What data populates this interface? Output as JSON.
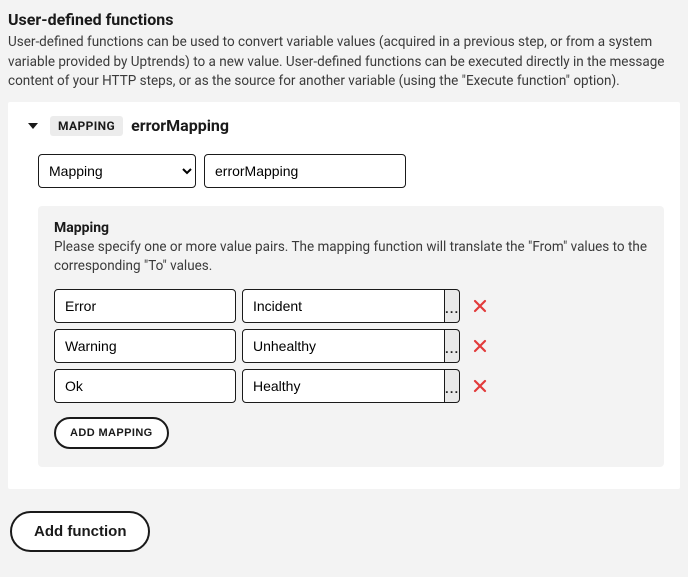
{
  "section": {
    "title": "User-defined functions",
    "description": "User-defined functions can be used to convert variable values (acquired in a previous step, or from a system variable provided by Uptrends) to a new value. User-defined functions can be executed directly in the message content of your HTTP steps, or as the source for another variable (using the \"Execute function\" option)."
  },
  "card": {
    "badge": "MAPPING",
    "name": "errorMapping",
    "type_select": {
      "options": [
        "Mapping"
      ],
      "value": "Mapping"
    },
    "name_input": "errorMapping",
    "mapping": {
      "title": "Mapping",
      "description": "Please specify one or more value pairs. The mapping function will translate the \"From\" values to the corresponding \"To\" values.",
      "pairs": [
        {
          "from": "Error",
          "to": "Incident"
        },
        {
          "from": "Warning",
          "to": "Unhealthy"
        },
        {
          "from": "Ok",
          "to": "Healthy"
        }
      ],
      "add_label": "ADD MAPPING"
    }
  },
  "add_function_label": "Add function",
  "more_glyph": "..."
}
